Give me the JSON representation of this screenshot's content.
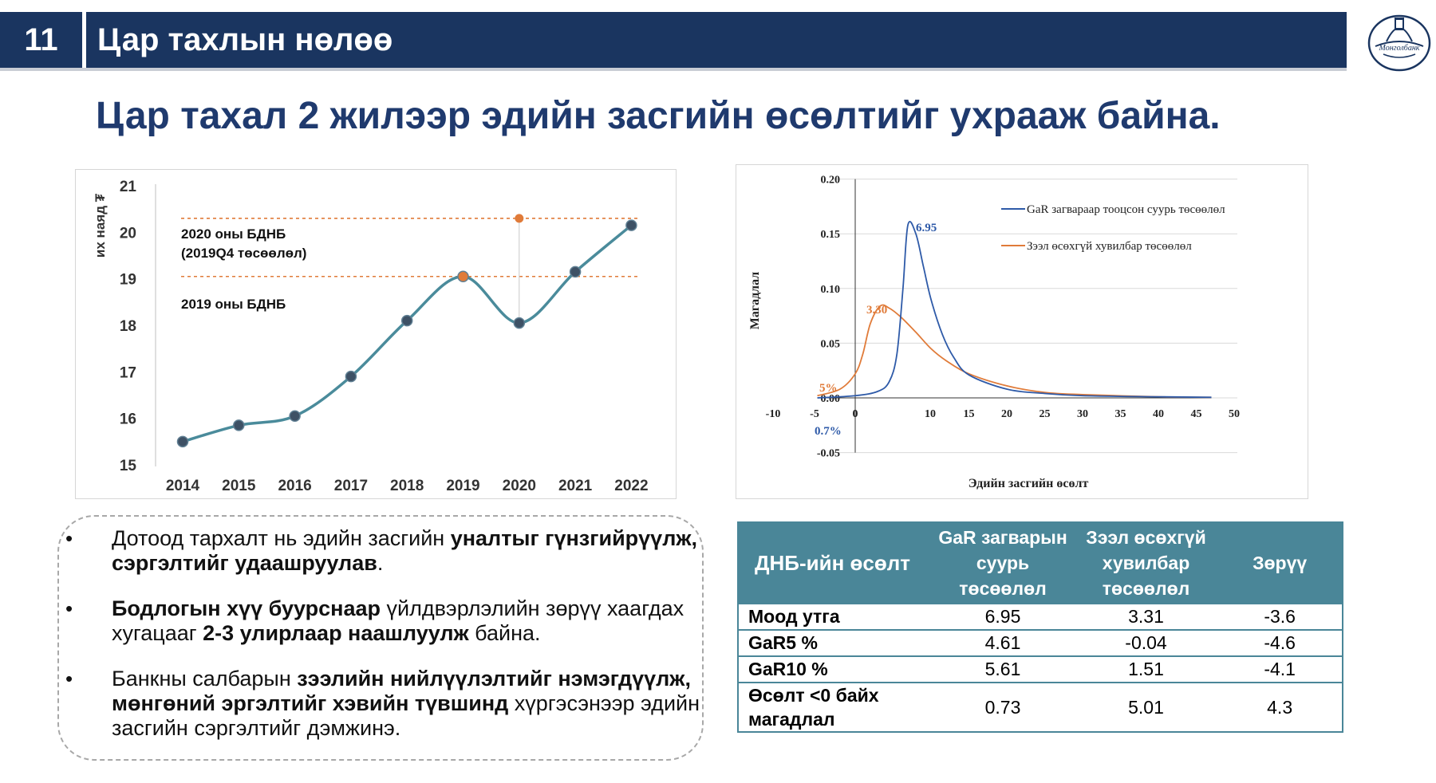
{
  "header": {
    "slide_number": "11",
    "title": "Цар тахлын нөлөө"
  },
  "subtitle": "Цар тахал 2 жилээр эдийн засгийн өсөлтийг ухрааж байна.",
  "colors": {
    "navy": "#1a3560",
    "title_blue": "#1f3a6e",
    "teal": "#4a8698",
    "line_teal": "#4a8b9b",
    "orange": "#e07b39",
    "blue": "#2e5aa8"
  },
  "chart_data": [
    {
      "type": "line",
      "ylabel": "их наяд ₮",
      "x": [
        "2014",
        "2015",
        "2016",
        "2017",
        "2018",
        "2019",
        "2020",
        "2021",
        "2022"
      ],
      "series": [
        {
          "values": [
            15.5,
            15.85,
            16.05,
            16.9,
            18.1,
            19.05,
            18.05,
            19.15,
            20.15
          ]
        }
      ],
      "ylim": [
        15,
        21
      ],
      "yticks": [
        "15",
        "16",
        "17",
        "18",
        "19",
        "20",
        "21"
      ],
      "reference_lines": [
        {
          "value": 20.3,
          "label_line1": "2020 оны БДНБ",
          "label_line2": "(2019Q4 төсөөлөл)"
        },
        {
          "value": 19.05,
          "label_line1": "2019 оны БДНБ"
        }
      ],
      "highlight_point": {
        "x": "2020",
        "value": 20.3
      },
      "grid": false
    },
    {
      "type": "line",
      "xlabel": "Эдийн засгийн өсөлт",
      "ylabel": "Магадлал",
      "xlim": [
        -10,
        50
      ],
      "ylim": [
        -0.05,
        0.2
      ],
      "xticks": [
        "-10",
        "-5",
        "0",
        "10",
        "15",
        "20",
        "25",
        "30",
        "35",
        "40",
        "45",
        "50"
      ],
      "yticks": [
        "-0.05",
        "0.00",
        "0.05",
        "0.10",
        "0.15",
        "0.20"
      ],
      "series": [
        {
          "name": "GaR загвараар тооцсон суурь төсөөлөл",
          "color": "#2e5aa8",
          "mode": 6.95,
          "x": [
            -5,
            0,
            3,
            4.5,
            5.5,
            6.3,
            6.95,
            8,
            9,
            10,
            11.5,
            13,
            15,
            20,
            25,
            30,
            40,
            47
          ],
          "y": [
            0,
            0.002,
            0.006,
            0.015,
            0.04,
            0.1,
            0.158,
            0.15,
            0.12,
            0.09,
            0.058,
            0.037,
            0.021,
            0.008,
            0.004,
            0.002,
            0.001,
            0.0005
          ]
        },
        {
          "name": "Зээл өсөхгүй хувилбар төсөөлөл",
          "color": "#e07b39",
          "mode": 3.3,
          "x": [
            -5,
            -2,
            0,
            1,
            2,
            3.3,
            4.5,
            6,
            8,
            10,
            12,
            15,
            20,
            25,
            30,
            40,
            47
          ],
          "y": [
            0.002,
            0.008,
            0.022,
            0.04,
            0.068,
            0.084,
            0.082,
            0.074,
            0.06,
            0.045,
            0.034,
            0.022,
            0.011,
            0.005,
            0.003,
            0.001,
            0.0005
          ]
        }
      ],
      "annotations": [
        {
          "text": "6.95",
          "color": "#2e5aa8"
        },
        {
          "text": "3.30",
          "color": "#e07b39"
        },
        {
          "text": "5%",
          "color": "#e07b39"
        },
        {
          "text": "0.7%",
          "color": "#2e5aa8"
        }
      ],
      "legend": "top-right"
    }
  ],
  "bullets": [
    [
      {
        "t": "Дотоод тархалт нь эдийн засгийн ",
        "b": false
      },
      {
        "t": "уналтыг гүнзгийрүүлж, сэргэлтийг удаашруулав",
        "b": true
      },
      {
        "t": ".",
        "b": false
      }
    ],
    [
      {
        "t": "Бодлогын хүү буурснаар",
        "b": true
      },
      {
        "t": " үйлдвэрлэлийн зөрүү хаагдах хугацааг ",
        "b": false
      },
      {
        "t": "2-3 улирлаар наашлуулж",
        "b": true
      },
      {
        "t": " байна.",
        "b": false
      }
    ],
    [
      {
        "t": "Банкны салбарын ",
        "b": false
      },
      {
        "t": "зээлийн нийлүүлэлтийг нэмэгдүүлж, мөнгөний эргэлтийг хэвийн түвшинд",
        "b": true
      },
      {
        "t": " хүргэсэнээр эдийн засгийн сэргэлтийг дэмжинэ.",
        "b": false
      }
    ]
  ],
  "table": {
    "headers": [
      "ДНБ-ийн өсөлт",
      "GaR загварын суурь төсөөлөл",
      "Зээл өсөхгүй хувилбар төсөөлөл",
      "Зөрүү"
    ],
    "rows": [
      [
        "Моод утга",
        "6.95",
        "3.31",
        "-3.6"
      ],
      [
        "GaR5 %",
        "4.61",
        "-0.04",
        "-4.6"
      ],
      [
        "GaR10 %",
        "5.61",
        "1.51",
        "-4.1"
      ],
      [
        "Өсөлт <0 байх магадлал",
        "0.73",
        "5.01",
        "4.3"
      ]
    ]
  },
  "logo": {
    "icon": "mongolbank-emblem-icon",
    "text": "Монголбанк"
  }
}
